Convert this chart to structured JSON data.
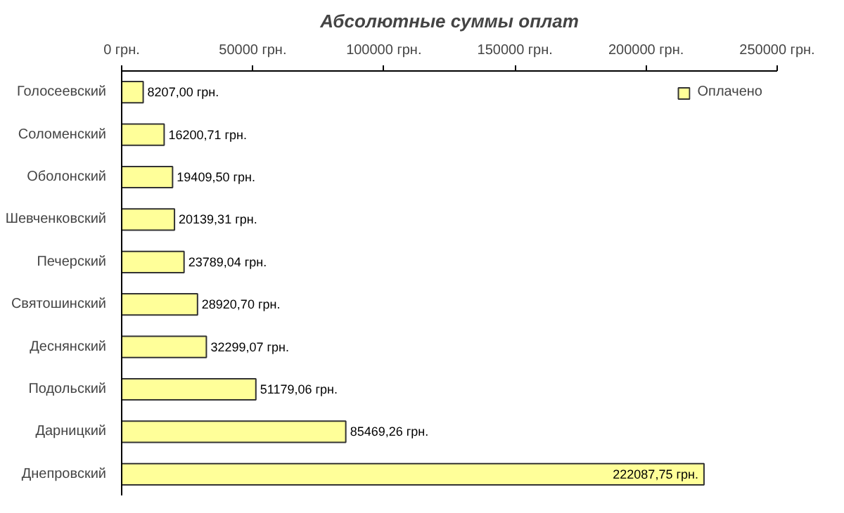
{
  "chart_data": {
    "type": "bar",
    "orientation": "horizontal",
    "title": "Абсолютные суммы оплат",
    "categories": [
      "Голосеевский",
      "Соломенский",
      "Оболонский",
      "Шевченковский",
      "Печерский",
      "Святошинский",
      "Деснянский",
      "Подольский",
      "Дарницкий",
      "Днепровский"
    ],
    "series": [
      {
        "name": "Оплачено",
        "color": "#ffff99",
        "values": [
          8207.0,
          16200.71,
          19409.5,
          20139.31,
          23789.04,
          28920.7,
          32299.07,
          51179.06,
          85469.26,
          222087.75
        ],
        "value_labels": [
          "8207,00 грн.",
          "16200,71 грн.",
          "19409,50 грн.",
          "20139,31 грн.",
          "23789,04 грн.",
          "28920,70 грн.",
          "32299,07 грн.",
          "51179,06 грн.",
          "85469,26 грн.",
          "222087,75 грн."
        ]
      }
    ],
    "xlim": [
      0,
      250000
    ],
    "xticks": [
      {
        "value": 0,
        "label": "0 грн."
      },
      {
        "value": 50000,
        "label": "50000 грн."
      },
      {
        "value": 100000,
        "label": "100000 грн."
      },
      {
        "value": 150000,
        "label": "150000 грн."
      },
      {
        "value": 200000,
        "label": "200000 грн."
      },
      {
        "value": 250000,
        "label": "250000 грн."
      }
    ],
    "grid": false,
    "legend": "top right"
  }
}
